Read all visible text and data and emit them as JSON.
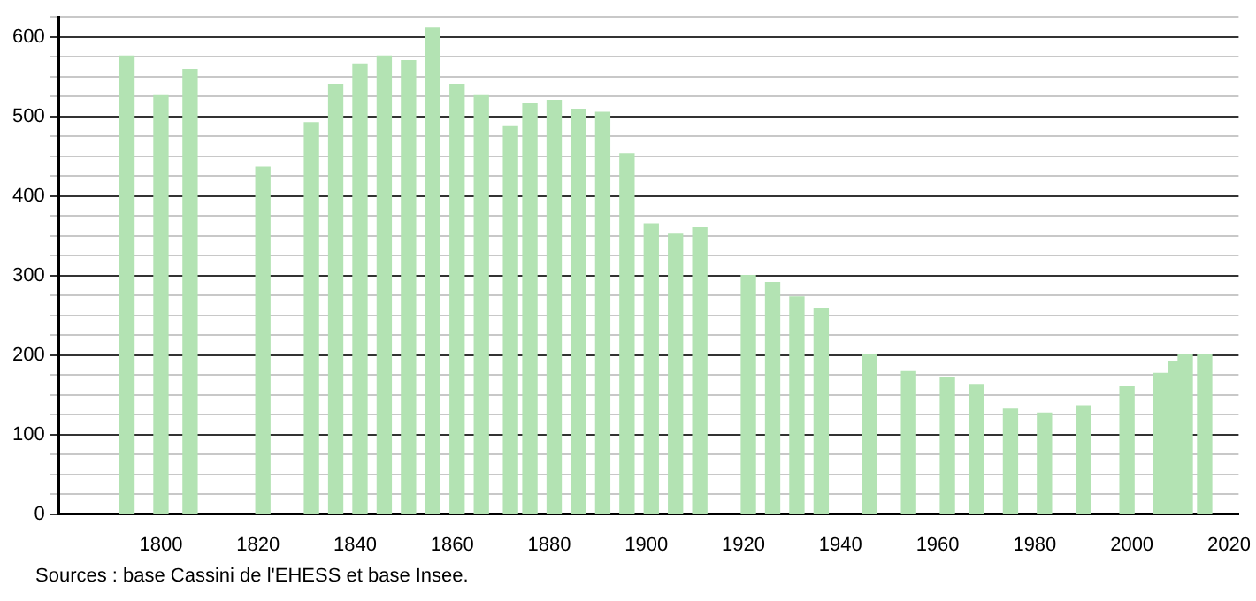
{
  "chart_data": {
    "type": "bar",
    "x": [
      1793,
      1800,
      1806,
      1821,
      1831,
      1836,
      1841,
      1846,
      1851,
      1856,
      1861,
      1866,
      1872,
      1876,
      1881,
      1886,
      1891,
      1896,
      1901,
      1906,
      1911,
      1921,
      1926,
      1931,
      1936,
      1946,
      1954,
      1962,
      1968,
      1975,
      1982,
      1990,
      1999,
      2006,
      2009,
      2011,
      2015
    ],
    "values": [
      576,
      527,
      559,
      436,
      492,
      540,
      566,
      576,
      570,
      611,
      540,
      527,
      488,
      516,
      520,
      509,
      505,
      453,
      365,
      352,
      360,
      300,
      291,
      273,
      259,
      201,
      179,
      171,
      162,
      132,
      127,
      136,
      160,
      177,
      192,
      201,
      201
    ],
    "color": "#b3e3b3",
    "xlim": [
      1779,
      2022
    ],
    "xticks": [
      1800,
      1820,
      1840,
      1860,
      1880,
      1900,
      1920,
      1940,
      1960,
      1980,
      2000,
      2020
    ],
    "ylim": [
      0,
      625
    ],
    "yticks": [
      0,
      {
        "value": 25,
        "label": null
      },
      {
        "value": 50,
        "label": null
      },
      {
        "value": 75,
        "label": null
      },
      100,
      {
        "value": 125,
        "label": null
      },
      {
        "value": 150,
        "label": null
      },
      {
        "value": 175,
        "label": null
      },
      200,
      {
        "value": 225,
        "label": null
      },
      {
        "value": 250,
        "label": null
      },
      {
        "value": 275,
        "label": null
      },
      300,
      {
        "value": 325,
        "label": null
      },
      {
        "value": 350,
        "label": null
      },
      {
        "value": 375,
        "label": null
      },
      400,
      {
        "value": 425,
        "label": null
      },
      {
        "value": 450,
        "label": null
      },
      {
        "value": 475,
        "label": null
      },
      500,
      {
        "value": 525,
        "label": null
      },
      {
        "value": 550,
        "label": null
      },
      {
        "value": 575,
        "label": null
      },
      600,
      {
        "value": 625,
        "label": null
      }
    ],
    "grid": "y",
    "legend": false,
    "annotations": [
      "Sources : base Cassini de l'EHESS et base Insee."
    ]
  }
}
